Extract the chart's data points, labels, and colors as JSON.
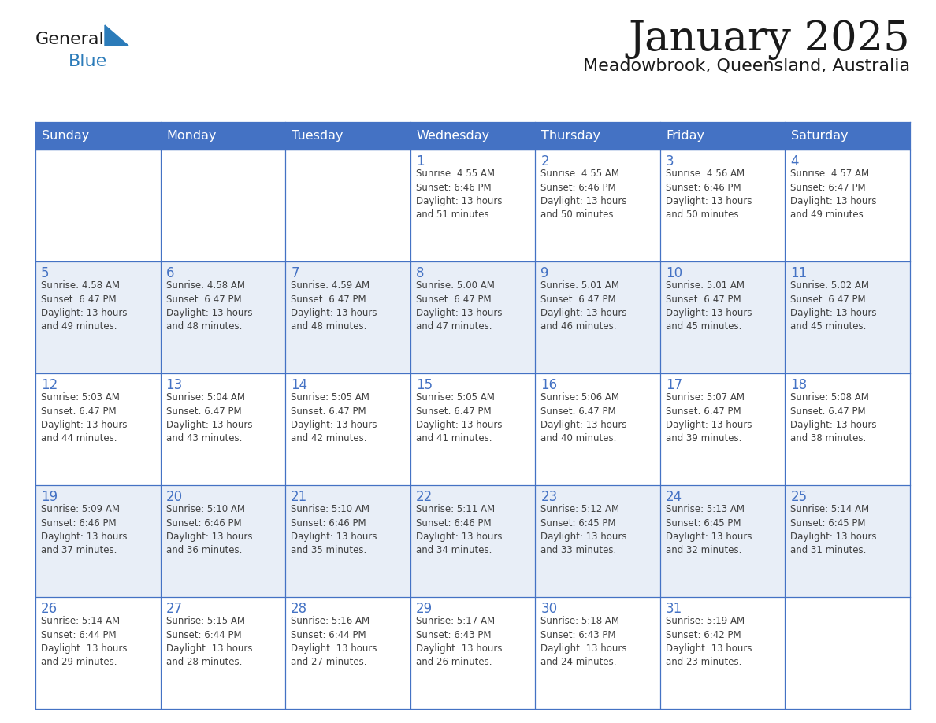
{
  "title": "January 2025",
  "subtitle": "Meadowbrook, Queensland, Australia",
  "days_of_week": [
    "Sunday",
    "Monday",
    "Tuesday",
    "Wednesday",
    "Thursday",
    "Friday",
    "Saturday"
  ],
  "header_bg": "#4472C4",
  "header_text": "#FFFFFF",
  "cell_bg_white": "#FFFFFF",
  "cell_bg_light": "#E8EEF7",
  "border_color": "#4472C4",
  "day_num_color": "#4472C4",
  "cell_text_color": "#404040",
  "title_color": "#1a1a1a",
  "subtitle_color": "#1a1a1a",
  "logo_general_color": "#1a1a1a",
  "logo_blue_color": "#2B7BB9",
  "calendar_data": [
    [
      {
        "day": null,
        "info": ""
      },
      {
        "day": null,
        "info": ""
      },
      {
        "day": null,
        "info": ""
      },
      {
        "day": 1,
        "info": "Sunrise: 4:55 AM\nSunset: 6:46 PM\nDaylight: 13 hours\nand 51 minutes."
      },
      {
        "day": 2,
        "info": "Sunrise: 4:55 AM\nSunset: 6:46 PM\nDaylight: 13 hours\nand 50 minutes."
      },
      {
        "day": 3,
        "info": "Sunrise: 4:56 AM\nSunset: 6:46 PM\nDaylight: 13 hours\nand 50 minutes."
      },
      {
        "day": 4,
        "info": "Sunrise: 4:57 AM\nSunset: 6:47 PM\nDaylight: 13 hours\nand 49 minutes."
      }
    ],
    [
      {
        "day": 5,
        "info": "Sunrise: 4:58 AM\nSunset: 6:47 PM\nDaylight: 13 hours\nand 49 minutes."
      },
      {
        "day": 6,
        "info": "Sunrise: 4:58 AM\nSunset: 6:47 PM\nDaylight: 13 hours\nand 48 minutes."
      },
      {
        "day": 7,
        "info": "Sunrise: 4:59 AM\nSunset: 6:47 PM\nDaylight: 13 hours\nand 48 minutes."
      },
      {
        "day": 8,
        "info": "Sunrise: 5:00 AM\nSunset: 6:47 PM\nDaylight: 13 hours\nand 47 minutes."
      },
      {
        "day": 9,
        "info": "Sunrise: 5:01 AM\nSunset: 6:47 PM\nDaylight: 13 hours\nand 46 minutes."
      },
      {
        "day": 10,
        "info": "Sunrise: 5:01 AM\nSunset: 6:47 PM\nDaylight: 13 hours\nand 45 minutes."
      },
      {
        "day": 11,
        "info": "Sunrise: 5:02 AM\nSunset: 6:47 PM\nDaylight: 13 hours\nand 45 minutes."
      }
    ],
    [
      {
        "day": 12,
        "info": "Sunrise: 5:03 AM\nSunset: 6:47 PM\nDaylight: 13 hours\nand 44 minutes."
      },
      {
        "day": 13,
        "info": "Sunrise: 5:04 AM\nSunset: 6:47 PM\nDaylight: 13 hours\nand 43 minutes."
      },
      {
        "day": 14,
        "info": "Sunrise: 5:05 AM\nSunset: 6:47 PM\nDaylight: 13 hours\nand 42 minutes."
      },
      {
        "day": 15,
        "info": "Sunrise: 5:05 AM\nSunset: 6:47 PM\nDaylight: 13 hours\nand 41 minutes."
      },
      {
        "day": 16,
        "info": "Sunrise: 5:06 AM\nSunset: 6:47 PM\nDaylight: 13 hours\nand 40 minutes."
      },
      {
        "day": 17,
        "info": "Sunrise: 5:07 AM\nSunset: 6:47 PM\nDaylight: 13 hours\nand 39 minutes."
      },
      {
        "day": 18,
        "info": "Sunrise: 5:08 AM\nSunset: 6:47 PM\nDaylight: 13 hours\nand 38 minutes."
      }
    ],
    [
      {
        "day": 19,
        "info": "Sunrise: 5:09 AM\nSunset: 6:46 PM\nDaylight: 13 hours\nand 37 minutes."
      },
      {
        "day": 20,
        "info": "Sunrise: 5:10 AM\nSunset: 6:46 PM\nDaylight: 13 hours\nand 36 minutes."
      },
      {
        "day": 21,
        "info": "Sunrise: 5:10 AM\nSunset: 6:46 PM\nDaylight: 13 hours\nand 35 minutes."
      },
      {
        "day": 22,
        "info": "Sunrise: 5:11 AM\nSunset: 6:46 PM\nDaylight: 13 hours\nand 34 minutes."
      },
      {
        "day": 23,
        "info": "Sunrise: 5:12 AM\nSunset: 6:45 PM\nDaylight: 13 hours\nand 33 minutes."
      },
      {
        "day": 24,
        "info": "Sunrise: 5:13 AM\nSunset: 6:45 PM\nDaylight: 13 hours\nand 32 minutes."
      },
      {
        "day": 25,
        "info": "Sunrise: 5:14 AM\nSunset: 6:45 PM\nDaylight: 13 hours\nand 31 minutes."
      }
    ],
    [
      {
        "day": 26,
        "info": "Sunrise: 5:14 AM\nSunset: 6:44 PM\nDaylight: 13 hours\nand 29 minutes."
      },
      {
        "day": 27,
        "info": "Sunrise: 5:15 AM\nSunset: 6:44 PM\nDaylight: 13 hours\nand 28 minutes."
      },
      {
        "day": 28,
        "info": "Sunrise: 5:16 AM\nSunset: 6:44 PM\nDaylight: 13 hours\nand 27 minutes."
      },
      {
        "day": 29,
        "info": "Sunrise: 5:17 AM\nSunset: 6:43 PM\nDaylight: 13 hours\nand 26 minutes."
      },
      {
        "day": 30,
        "info": "Sunrise: 5:18 AM\nSunset: 6:43 PM\nDaylight: 13 hours\nand 24 minutes."
      },
      {
        "day": 31,
        "info": "Sunrise: 5:19 AM\nSunset: 6:42 PM\nDaylight: 13 hours\nand 23 minutes."
      },
      {
        "day": null,
        "info": ""
      }
    ]
  ]
}
